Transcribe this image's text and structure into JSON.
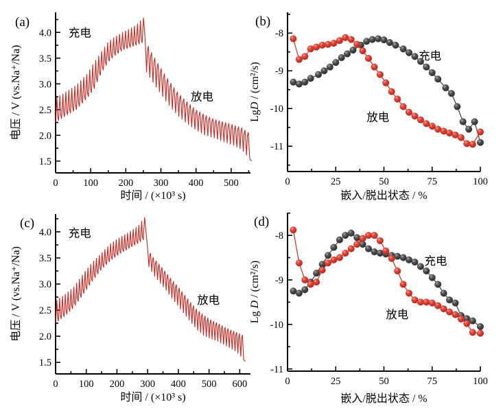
{
  "figure": {
    "background": "#ffffff",
    "axis_color": "#000000",
    "colors": {
      "charge_series": "#4a4a4a",
      "discharge_series": "#d9352c",
      "gitt_curve": "#cb2b24"
    }
  },
  "chart_data": [
    {
      "id": "a",
      "tag": "(a)",
      "type": "line",
      "variant": "gitt",
      "xlabel": "时间 / (×10³ s)",
      "ylabel": {
        "pre": "电压 / V (vs.Na",
        "it": "",
        "post": "⁺/Na)"
      },
      "xlim": [
        0,
        555
      ],
      "ylim": [
        1.27,
        4.39
      ],
      "xticks": {
        "values": [
          0,
          100,
          200,
          300,
          400,
          500
        ],
        "labels": [
          "0",
          "100",
          "200",
          "300",
          "400",
          "500"
        ],
        "minor_step": 50
      },
      "yticks": {
        "values": [
          1.5,
          2.0,
          2.5,
          3.0,
          3.5,
          4.0
        ],
        "labels": [
          "1.5",
          "2.0",
          "2.5",
          "3.0",
          "3.5",
          "4.0"
        ],
        "minor_step": 0.25
      },
      "annotations": [
        {
          "text": "充电",
          "x": 37,
          "y": 4.0
        },
        {
          "text": "放电",
          "x": 385,
          "y": 2.76
        }
      ],
      "gitt": {
        "charge": {
          "t0": 0,
          "t1": 255,
          "pulses": 30,
          "lower": [
            [
              0,
              2.25
            ],
            [
              30,
              2.38
            ],
            [
              60,
              2.5
            ],
            [
              90,
              2.72
            ],
            [
              110,
              2.9
            ],
            [
              130,
              3.2
            ],
            [
              150,
              3.42
            ],
            [
              170,
              3.55
            ],
            [
              190,
              3.65
            ],
            [
              210,
              3.7
            ],
            [
              230,
              3.75
            ],
            [
              255,
              3.82
            ]
          ],
          "upper": [
            [
              0,
              2.72
            ],
            [
              30,
              2.85
            ],
            [
              60,
              2.98
            ],
            [
              90,
              3.2
            ],
            [
              110,
              3.42
            ],
            [
              130,
              3.62
            ],
            [
              150,
              3.82
            ],
            [
              170,
              3.92
            ],
            [
              190,
              4.0
            ],
            [
              210,
              4.07
            ],
            [
              230,
              4.15
            ],
            [
              255,
              4.32
            ]
          ]
        },
        "discharge": {
          "t0": 255,
          "t1": 558,
          "pulses": 33,
          "upper": [
            [
              255,
              3.87
            ],
            [
              270,
              3.65
            ],
            [
              290,
              3.42
            ],
            [
              310,
              3.2
            ],
            [
              330,
              3.0
            ],
            [
              350,
              2.82
            ],
            [
              375,
              2.65
            ],
            [
              400,
              2.5
            ],
            [
              425,
              2.4
            ],
            [
              450,
              2.32
            ],
            [
              475,
              2.27
            ],
            [
              500,
              2.22
            ],
            [
              530,
              2.15
            ],
            [
              558,
              2.02
            ]
          ],
          "lower": [
            [
              255,
              3.27
            ],
            [
              270,
              3.1
            ],
            [
              290,
              2.9
            ],
            [
              310,
              2.7
            ],
            [
              330,
              2.52
            ],
            [
              350,
              2.37
            ],
            [
              375,
              2.22
            ],
            [
              400,
              2.1
            ],
            [
              425,
              2.0
            ],
            [
              450,
              1.95
            ],
            [
              475,
              1.88
            ],
            [
              500,
              1.82
            ],
            [
              530,
              1.72
            ],
            [
              558,
              1.5
            ]
          ]
        }
      }
    },
    {
      "id": "b",
      "tag": "(b)",
      "type": "scatter",
      "xlabel": "嵌入/脱出状态 / %",
      "ylabel": {
        "pre": "Lg",
        "it": "D",
        "post": " / (cm²/s)"
      },
      "xlim": [
        0,
        100
      ],
      "ylim": [
        -11.67,
        -7.45
      ],
      "xticks": {
        "values": [
          0,
          25,
          50,
          75,
          100
        ],
        "labels": [
          "0",
          "25",
          "50",
          "75",
          "100"
        ],
        "minor_step": 12.5
      },
      "yticks": {
        "values": [
          -8,
          -9,
          -10,
          -11
        ],
        "labels": [
          "-8",
          "-9",
          "-10",
          "-11"
        ],
        "minor_step": 0.5
      },
      "annotations": [
        {
          "text": "充电",
          "x": 68,
          "y": -8.6
        },
        {
          "text": "放电",
          "x": 41,
          "y": -10.22
        }
      ],
      "series": [
        {
          "name": "充电",
          "color_key": "charge_series",
          "x": [
            3,
            6,
            9,
            12,
            16,
            19,
            22,
            25,
            28,
            31,
            34,
            38,
            41,
            44,
            47,
            50,
            53,
            56,
            60,
            63,
            66,
            69,
            72,
            75,
            78,
            82,
            85,
            88,
            91,
            94,
            97,
            100
          ],
          "y": [
            -9.3,
            -9.35,
            -9.3,
            -9.2,
            -9.1,
            -9.0,
            -8.9,
            -8.78,
            -8.65,
            -8.55,
            -8.45,
            -8.32,
            -8.22,
            -8.17,
            -8.15,
            -8.18,
            -8.25,
            -8.32,
            -8.42,
            -8.52,
            -8.62,
            -8.75,
            -8.9,
            -9.05,
            -9.22,
            -9.45,
            -9.6,
            -9.95,
            -10.35,
            -10.55,
            -10.35,
            -10.9
          ]
        },
        {
          "name": "放电",
          "color_key": "discharge_series",
          "x": [
            3,
            6,
            9,
            12,
            15,
            18,
            21,
            24,
            27,
            30,
            33,
            36,
            39,
            42,
            45,
            48,
            51,
            54,
            57,
            60,
            63,
            66,
            69,
            72,
            75,
            78,
            81,
            84,
            87,
            90,
            93,
            96,
            100
          ],
          "y": [
            -8.15,
            -8.7,
            -8.62,
            -8.42,
            -8.37,
            -8.32,
            -8.3,
            -8.27,
            -8.2,
            -8.12,
            -8.17,
            -8.3,
            -8.47,
            -8.67,
            -8.9,
            -9.1,
            -9.32,
            -9.55,
            -9.75,
            -9.95,
            -10.1,
            -10.2,
            -10.3,
            -10.4,
            -10.47,
            -10.55,
            -10.6,
            -10.65,
            -10.7,
            -10.77,
            -10.93,
            -10.95,
            -10.62
          ]
        }
      ]
    },
    {
      "id": "c",
      "tag": "(c)",
      "type": "line",
      "variant": "gitt",
      "xlabel": "时间 / (×10³ s)",
      "ylabel": {
        "pre": "电压 / V (vs.Na",
        "it": "",
        "post": "⁺/Na)"
      },
      "xlim": [
        0,
        635
      ],
      "ylim": [
        1.28,
        4.34
      ],
      "xticks": {
        "values": [
          0,
          100,
          200,
          300,
          400,
          500,
          600
        ],
        "labels": [
          "0",
          "100",
          "200",
          "300",
          "400",
          "500",
          "600"
        ],
        "minor_step": 50
      },
      "yticks": {
        "values": [
          1.5,
          2.0,
          2.5,
          3.0,
          3.5,
          4.0
        ],
        "labels": [
          "1.5",
          "2.0",
          "2.5",
          "3.0",
          "3.5",
          "4.0"
        ],
        "minor_step": 0.25
      },
      "annotations": [
        {
          "text": "充电",
          "x": 42,
          "y": 3.98
        },
        {
          "text": "放电",
          "x": 461,
          "y": 2.7
        }
      ],
      "gitt": {
        "charge": {
          "t0": 0,
          "t1": 295,
          "pulses": 32,
          "lower": [
            [
              0,
              2.25
            ],
            [
              30,
              2.38
            ],
            [
              60,
              2.55
            ],
            [
              90,
              2.8
            ],
            [
              120,
              3.05
            ],
            [
              150,
              3.28
            ],
            [
              180,
              3.45
            ],
            [
              210,
              3.58
            ],
            [
              240,
              3.68
            ],
            [
              270,
              3.78
            ],
            [
              295,
              3.88
            ]
          ],
          "upper": [
            [
              0,
              2.68
            ],
            [
              30,
              2.8
            ],
            [
              60,
              2.95
            ],
            [
              90,
              3.2
            ],
            [
              120,
              3.42
            ],
            [
              150,
              3.6
            ],
            [
              180,
              3.78
            ],
            [
              210,
              3.9
            ],
            [
              240,
              4.0
            ],
            [
              270,
              4.12
            ],
            [
              295,
              4.32
            ]
          ]
        },
        "discharge": {
          "t0": 300,
          "t1": 618,
          "pulses": 34,
          "upper": [
            [
              300,
              3.67
            ],
            [
              320,
              3.5
            ],
            [
              340,
              3.37
            ],
            [
              360,
              3.22
            ],
            [
              380,
              3.08
            ],
            [
              400,
              2.95
            ],
            [
              420,
              2.8
            ],
            [
              440,
              2.65
            ],
            [
              460,
              2.52
            ],
            [
              480,
              2.42
            ],
            [
              505,
              2.32
            ],
            [
              530,
              2.25
            ],
            [
              560,
              2.15
            ],
            [
              590,
              2.08
            ],
            [
              618,
              2.0
            ]
          ],
          "lower": [
            [
              300,
              3.37
            ],
            [
              320,
              3.17
            ],
            [
              340,
              3.02
            ],
            [
              360,
              2.88
            ],
            [
              380,
              2.72
            ],
            [
              400,
              2.57
            ],
            [
              420,
              2.42
            ],
            [
              440,
              2.27
            ],
            [
              460,
              2.13
            ],
            [
              480,
              2.02
            ],
            [
              505,
              1.95
            ],
            [
              530,
              1.9
            ],
            [
              560,
              1.8
            ],
            [
              590,
              1.7
            ],
            [
              618,
              1.52
            ]
          ]
        }
      }
    },
    {
      "id": "d",
      "tag": "(d)",
      "type": "scatter",
      "xlabel": "嵌入/脱出状态 / %",
      "ylabel": {
        "pre": "Lg ",
        "it": "D",
        "post": " / (cm²/s)"
      },
      "xlim": [
        0,
        100
      ],
      "ylim": [
        -11.05,
        -7.49
      ],
      "xticks": {
        "values": [
          0,
          25,
          50,
          75,
          100
        ],
        "labels": [
          "0",
          "25",
          "50",
          "75",
          "100"
        ],
        "minor_step": 12.5
      },
      "yticks": {
        "values": [
          -8,
          -9,
          -10,
          -11
        ],
        "labels": [
          "-8",
          "-9",
          "-10",
          "-11"
        ],
        "minor_step": 0.5
      },
      "annotations": [
        {
          "text": "充电",
          "x": 71,
          "y": -8.57
        },
        {
          "text": "放电",
          "x": 51,
          "y": -9.77
        }
      ],
      "series": [
        {
          "name": "充电",
          "color_key": "charge_series",
          "x": [
            3,
            6,
            9,
            12,
            15,
            18,
            21,
            24,
            27,
            30,
            33,
            36,
            39,
            42,
            45,
            48,
            51,
            54,
            57,
            60,
            63,
            66,
            69,
            72,
            75,
            78,
            81,
            84,
            87,
            90,
            93,
            96,
            100
          ],
          "y": [
            -9.25,
            -9.3,
            -9.22,
            -9.05,
            -8.85,
            -8.65,
            -8.45,
            -8.27,
            -8.1,
            -8.0,
            -7.95,
            -8.05,
            -8.2,
            -8.3,
            -8.37,
            -8.4,
            -8.42,
            -8.45,
            -8.47,
            -8.5,
            -8.55,
            -8.6,
            -8.7,
            -8.8,
            -8.95,
            -9.1,
            -9.3,
            -9.45,
            -9.52,
            -9.8,
            -9.87,
            -9.92,
            -10.05
          ]
        },
        {
          "name": "放电",
          "color_key": "discharge_series",
          "x": [
            3,
            6,
            9,
            12,
            15,
            18,
            21,
            24,
            27,
            30,
            33,
            36,
            39,
            42,
            45,
            48,
            51,
            54,
            57,
            60,
            63,
            66,
            69,
            72,
            75,
            78,
            81,
            84,
            87,
            90,
            93,
            96,
            100
          ],
          "y": [
            -7.88,
            -8.62,
            -9.0,
            -9.1,
            -9.05,
            -8.78,
            -8.62,
            -8.55,
            -8.5,
            -8.4,
            -8.3,
            -8.2,
            -8.07,
            -8.0,
            -8.0,
            -8.12,
            -8.35,
            -8.52,
            -8.8,
            -9.1,
            -9.3,
            -9.45,
            -9.5,
            -9.5,
            -9.52,
            -9.58,
            -9.65,
            -9.72,
            -9.78,
            -9.88,
            -9.98,
            -10.18,
            -10.2
          ]
        }
      ]
    }
  ]
}
